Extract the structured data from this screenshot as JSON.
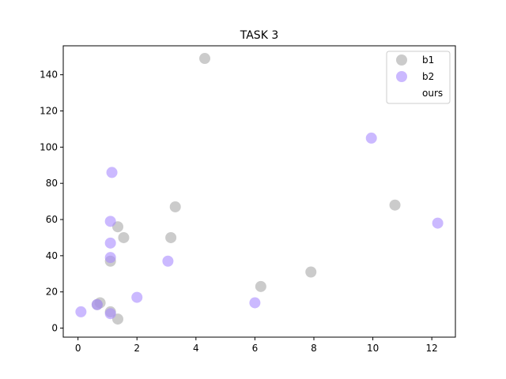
{
  "chart_data": {
    "type": "scatter",
    "title": "TASK 3",
    "xlabel": "",
    "ylabel": "",
    "xlim": [
      -0.5,
      12.8
    ],
    "ylim": [
      -5,
      156
    ],
    "xticks": [
      0,
      2,
      4,
      6,
      8,
      10,
      12
    ],
    "yticks": [
      0,
      20,
      40,
      60,
      80,
      100,
      120,
      140
    ],
    "grid": false,
    "legend_position": "top-right",
    "series": [
      {
        "name": "b1",
        "color": "#a9a9a9",
        "points": [
          {
            "x": 0.65,
            "y": 13
          },
          {
            "x": 0.75,
            "y": 14
          },
          {
            "x": 1.1,
            "y": 9
          },
          {
            "x": 1.1,
            "y": 37
          },
          {
            "x": 1.35,
            "y": 56
          },
          {
            "x": 1.35,
            "y": 5
          },
          {
            "x": 1.55,
            "y": 50
          },
          {
            "x": 3.15,
            "y": 50
          },
          {
            "x": 3.3,
            "y": 67
          },
          {
            "x": 4.3,
            "y": 149
          },
          {
            "x": 6.2,
            "y": 23
          },
          {
            "x": 7.9,
            "y": 31
          },
          {
            "x": 10.75,
            "y": 68
          }
        ]
      },
      {
        "name": "b2",
        "color": "#a98bff",
        "points": [
          {
            "x": 0.1,
            "y": 9
          },
          {
            "x": 0.65,
            "y": 13
          },
          {
            "x": 1.1,
            "y": 8
          },
          {
            "x": 1.1,
            "y": 39
          },
          {
            "x": 1.1,
            "y": 47
          },
          {
            "x": 1.1,
            "y": 59
          },
          {
            "x": 1.15,
            "y": 86
          },
          {
            "x": 2.0,
            "y": 17
          },
          {
            "x": 3.05,
            "y": 37
          },
          {
            "x": 6.0,
            "y": 14
          },
          {
            "x": 9.95,
            "y": 105
          },
          {
            "x": 12.2,
            "y": 58
          }
        ]
      },
      {
        "name": "ours",
        "color": "#ffffff",
        "points": []
      }
    ]
  }
}
